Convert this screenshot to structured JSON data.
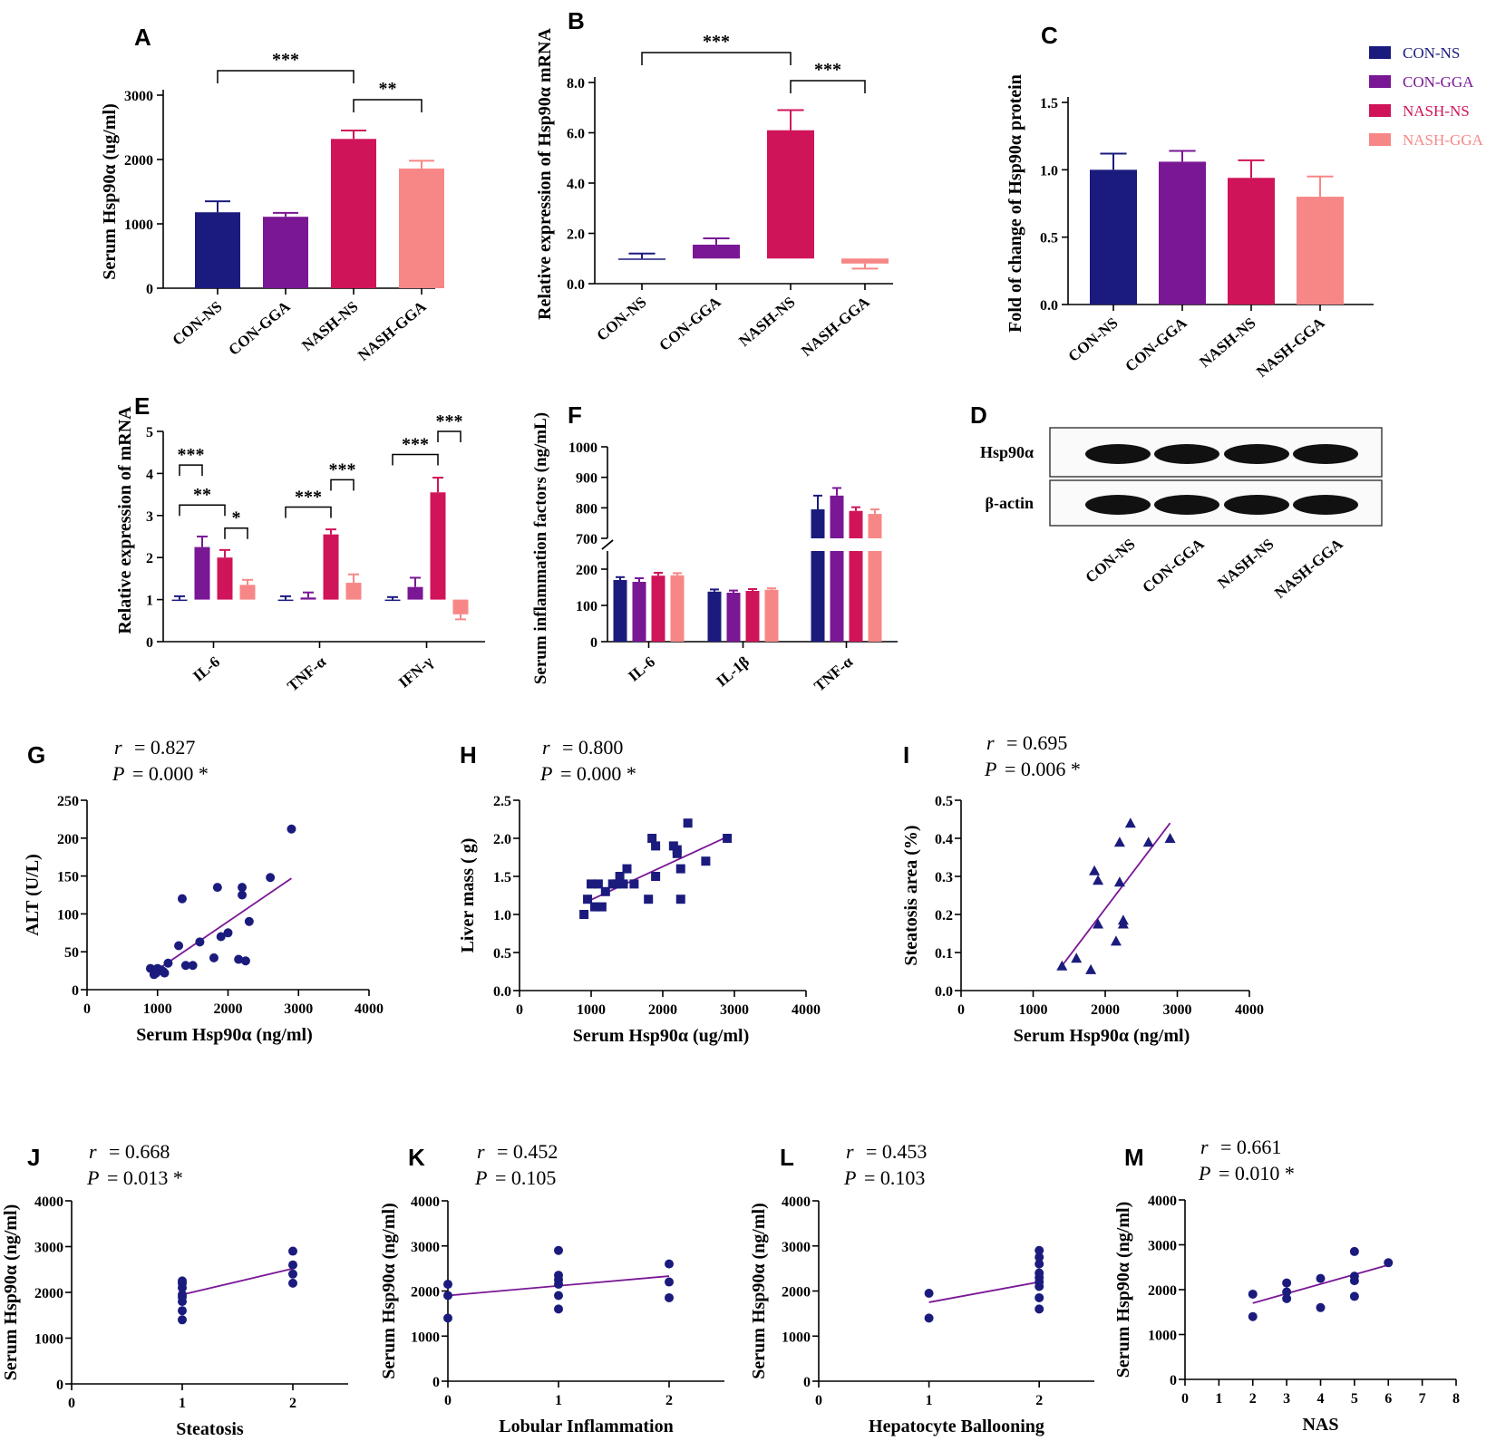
{
  "colors": {
    "CON-NS": "#1b1b7e",
    "CON-GGA": "#7a1795",
    "NASH-NS": "#d0145a",
    "NASH-GGA": "#f78787",
    "line": "#7a1795",
    "point": "#1b1b7e"
  },
  "legend": {
    "items": [
      {
        "label": "CON-NS",
        "color": "#1b1b7e"
      },
      {
        "label": "CON-GGA",
        "color": "#7a1795"
      },
      {
        "label": "NASH-NS",
        "color": "#d0145a"
      },
      {
        "label": "NASH-GGA",
        "color": "#f78787"
      }
    ]
  },
  "blot": {
    "label": "D",
    "rows": [
      "Hsp90α",
      "β-actin"
    ],
    "lanes": [
      "CON-NS",
      "CON-GGA",
      "NASH-NS",
      "NASH-GGA"
    ]
  },
  "chart_data": [
    {
      "id": "A",
      "label": "A",
      "type": "bar",
      "ylabel": "Serum Hsp90α (ug/ml)",
      "ylim": [
        0,
        3000
      ],
      "yticks": [
        "0",
        "1000",
        "2000",
        "3000"
      ],
      "categories": [
        "CON-NS",
        "CON-GGA",
        "NASH-NS",
        "NASH-GGA"
      ],
      "values": [
        1180,
        1110,
        2320,
        1860
      ],
      "errors": [
        170,
        60,
        130,
        120
      ],
      "sig": [
        {
          "text": "***",
          "from": 0,
          "to": 2
        },
        {
          "text": "**",
          "from": 2,
          "to": 3
        }
      ]
    },
    {
      "id": "B",
      "label": "B",
      "type": "bar",
      "ylabel": "Relative expression of Hsp90α mRNA",
      "ylim": [
        0,
        8
      ],
      "yticks": [
        "0.0",
        "2.0",
        "4.0",
        "6.0",
        "8.0"
      ],
      "categories": [
        "CON-NS",
        "CON-GGA",
        "NASH-NS",
        "NASH-GGA"
      ],
      "values": [
        1.0,
        1.55,
        6.1,
        0.8
      ],
      "errors": [
        0.2,
        0.25,
        0.8,
        0.2
      ],
      "baseline": 1.0,
      "sig": [
        {
          "text": "***",
          "from": 0,
          "to": 2
        },
        {
          "text": "***",
          "from": 2,
          "to": 3
        }
      ]
    },
    {
      "id": "C",
      "label": "C",
      "type": "bar",
      "ylabel": "Fold of change of Hsp90α protein",
      "ylim": [
        0,
        1.5
      ],
      "yticks": [
        "0.0",
        "0.5",
        "1.0",
        "1.5"
      ],
      "categories": [
        "CON-NS",
        "CON-GGA",
        "NASH-NS",
        "NASH-GGA"
      ],
      "values": [
        1.0,
        1.06,
        0.94,
        0.8
      ],
      "errors": [
        0.12,
        0.08,
        0.13,
        0.15
      ]
    },
    {
      "id": "E",
      "label": "E",
      "type": "bar",
      "ylabel": "Relative expression of mRNA",
      "ylim": [
        0,
        5
      ],
      "yticks": [
        "0",
        "1",
        "2",
        "3",
        "4",
        "5"
      ],
      "groups": [
        "IL-6",
        "TNF-α",
        "IFN-γ"
      ],
      "baseline": 1.0,
      "series": [
        {
          "name": "CON-NS",
          "values": [
            1.0,
            1.0,
            1.0
          ],
          "errors": [
            0.08,
            0.08,
            0.06
          ]
        },
        {
          "name": "CON-GGA",
          "values": [
            2.25,
            1.05,
            1.3
          ],
          "errors": [
            0.25,
            0.12,
            0.22
          ]
        },
        {
          "name": "NASH-NS",
          "values": [
            2.0,
            2.55,
            3.55
          ],
          "errors": [
            0.18,
            0.12,
            0.35
          ]
        },
        {
          "name": "NASH-GGA",
          "values": [
            1.35,
            1.4,
            0.65
          ],
          "errors": [
            0.12,
            0.2,
            0.12
          ]
        }
      ],
      "sig": [
        {
          "text": "***",
          "group": 0,
          "from": 0,
          "to": 1,
          "level": 4.2
        },
        {
          "text": "**",
          "group": 0,
          "from": 0,
          "to": 2,
          "level": 3.25
        },
        {
          "text": "*",
          "group": 0,
          "from": 2,
          "to": 3,
          "level": 2.7
        },
        {
          "text": "***",
          "group": 1,
          "from": 0,
          "to": 2,
          "level": 3.2
        },
        {
          "text": "***",
          "group": 1,
          "from": 2,
          "to": 3,
          "level": 3.85
        },
        {
          "text": "***",
          "group": 2,
          "from": 0,
          "to": 2,
          "level": 4.45
        },
        {
          "text": "***",
          "group": 2,
          "from": 2,
          "to": 3,
          "level": 5.0
        }
      ]
    },
    {
      "id": "F",
      "label": "F",
      "type": "bar",
      "ylabel": "Serum inflammation factors (ng/mL)",
      "yticks_lower": [
        "0",
        "100",
        "200"
      ],
      "yticks_upper": [
        "700",
        "800",
        "900",
        "1000"
      ],
      "ylim_lower": [
        0,
        250
      ],
      "ylim_upper": [
        700,
        1000
      ],
      "groups": [
        "IL-6",
        "IL-1β",
        "TNF-α"
      ],
      "series": [
        {
          "name": "CON-NS",
          "values": [
            170,
            138,
            795
          ],
          "errors": [
            8,
            6,
            45
          ]
        },
        {
          "name": "CON-GGA",
          "values": [
            165,
            135,
            840
          ],
          "errors": [
            10,
            6,
            25
          ]
        },
        {
          "name": "NASH-NS",
          "values": [
            182,
            140,
            790
          ],
          "errors": [
            8,
            5,
            12
          ]
        },
        {
          "name": "NASH-GGA",
          "values": [
            183,
            143,
            780
          ],
          "errors": [
            6,
            4,
            15
          ]
        }
      ]
    },
    {
      "id": "G",
      "label": "G",
      "type": "scatter",
      "marker": "circle",
      "r_label": "r",
      "r_value": "= 0.827",
      "p_label": "P",
      "p_value": "= 0.000 *",
      "xlabel": "Serum Hsp90α (ng/ml)",
      "ylabel": "ALT (U/L)",
      "xlim": [
        0,
        4000
      ],
      "ylim": [
        0,
        250
      ],
      "xticks": [
        "0",
        "1000",
        "2000",
        "3000",
        "4000"
      ],
      "yticks": [
        "0",
        "50",
        "100",
        "150",
        "200",
        "250"
      ],
      "x": [
        900,
        950,
        980,
        1000,
        1050,
        1080,
        1100,
        1150,
        1300,
        1350,
        1400,
        1500,
        1600,
        1800,
        1850,
        1900,
        2000,
        2150,
        2200,
        2200,
        2250,
        2300,
        2600,
        2900
      ],
      "y": [
        28,
        20,
        22,
        28,
        26,
        24,
        22,
        35,
        58,
        120,
        32,
        32,
        63,
        42,
        135,
        70,
        75,
        40,
        135,
        125,
        38,
        90,
        148,
        212
      ],
      "fit": {
        "x": [
          900,
          2900
        ],
        "y": [
          20,
          147
        ]
      }
    },
    {
      "id": "H",
      "label": "H",
      "type": "scatter",
      "marker": "square",
      "r_label": "r",
      "r_value": "= 0.800",
      "p_label": "P",
      "p_value": "= 0.000 *",
      "xlabel": "Serum Hsp90α (ug/ml)",
      "ylabel": "Liver mass ( g)",
      "xlim": [
        0,
        4000
      ],
      "ylim": [
        0,
        2.5
      ],
      "xticks": [
        "0",
        "1000",
        "2000",
        "3000",
        "4000"
      ],
      "yticks": [
        "0.0",
        "0.5",
        "1.0",
        "1.5",
        "2.0",
        "2.5"
      ],
      "x": [
        900,
        950,
        1000,
        1050,
        1100,
        1150,
        1200,
        1300,
        1350,
        1400,
        1450,
        1500,
        1600,
        1800,
        1850,
        1900,
        1900,
        2150,
        2200,
        2200,
        2250,
        2250,
        2350,
        2600,
        2900
      ],
      "y": [
        1.0,
        1.2,
        1.4,
        1.1,
        1.4,
        1.1,
        1.3,
        1.4,
        1.4,
        1.5,
        1.4,
        1.6,
        1.4,
        1.2,
        2.0,
        1.5,
        1.9,
        1.9,
        1.85,
        1.8,
        1.6,
        1.2,
        2.2,
        1.7,
        2.0
      ],
      "fit": {
        "x": [
          900,
          2900
        ],
        "y": [
          1.15,
          2.02
        ]
      }
    },
    {
      "id": "I",
      "label": "I",
      "type": "scatter",
      "marker": "triangle",
      "r_label": "r",
      "r_value": "= 0.695",
      "p_label": "P",
      "p_value": "= 0.006 *",
      "xlabel": "Serum Hsp90α (ng/ml)",
      "ylabel": "Steatosis area (%)",
      "xlim": [
        0,
        4000
      ],
      "ylim": [
        0,
        0.5
      ],
      "xticks": [
        "0",
        "1000",
        "2000",
        "3000",
        "4000"
      ],
      "yticks": [
        "0.0",
        "0.1",
        "0.2",
        "0.3",
        "0.4",
        "0.5"
      ],
      "x": [
        1400,
        1600,
        1800,
        1850,
        1900,
        1900,
        2150,
        2200,
        2200,
        2250,
        2250,
        2350,
        2600,
        2900
      ],
      "y": [
        0.065,
        0.085,
        0.055,
        0.315,
        0.29,
        0.175,
        0.13,
        0.39,
        0.285,
        0.185,
        0.175,
        0.44,
        0.39,
        0.4
      ],
      "fit": {
        "x": [
          1400,
          2900
        ],
        "y": [
          0.065,
          0.44
        ]
      }
    },
    {
      "id": "J",
      "label": "J",
      "type": "scatter",
      "marker": "circle",
      "r_label": "r",
      "r_value": "= 0.668",
      "p_label": "P",
      "p_value": "= 0.013 *",
      "xlabel": "Steatosis",
      "ylabel": "Serum Hsp90α (ng/ml)",
      "xlim": [
        0,
        2.5
      ],
      "ylim": [
        0,
        4000
      ],
      "xticks": [
        "0",
        "1",
        "2"
      ],
      "xtick_values": [
        0,
        1,
        2
      ],
      "yticks": [
        "0",
        "1000",
        "2000",
        "3000",
        "4000"
      ],
      "x": [
        1,
        1,
        1,
        1,
        1,
        1,
        1,
        1,
        2,
        2,
        2,
        2
      ],
      "y": [
        1400,
        1600,
        1800,
        1900,
        1950,
        2100,
        2200,
        2250,
        2200,
        2400,
        2600,
        2900
      ],
      "fit": {
        "x": [
          1,
          2
        ],
        "y": [
          1950,
          2520
        ]
      }
    },
    {
      "id": "K",
      "label": "K",
      "type": "scatter",
      "marker": "circle",
      "r_label": "r",
      "r_value": "= 0.452",
      "p_label": "P",
      "p_value": "= 0.105",
      "xlabel": "Lobular Inflammation",
      "ylabel": "Serum Hsp90α (ng/ml)",
      "xlim": [
        0,
        2.5
      ],
      "ylim": [
        0,
        4000
      ],
      "xticks": [
        "0",
        "1",
        "2"
      ],
      "xtick_values": [
        0,
        1,
        2
      ],
      "yticks": [
        "0",
        "1000",
        "2000",
        "3000",
        "4000"
      ],
      "x": [
        0,
        0,
        0,
        1,
        1,
        1,
        1,
        1,
        1,
        2,
        2,
        2
      ],
      "y": [
        1400,
        1900,
        2150,
        1600,
        1900,
        2150,
        2250,
        2350,
        2900,
        1850,
        2200,
        2600
      ],
      "fit": {
        "x": [
          0,
          2
        ],
        "y": [
          1900,
          2330
        ]
      }
    },
    {
      "id": "L",
      "label": "L",
      "type": "scatter",
      "marker": "circle",
      "r_label": "r",
      "r_value": "= 0.453",
      "p_label": "P",
      "p_value": "= 0.103",
      "xlabel": "Hepatocyte Ballooning",
      "ylabel": "Serum Hsp90α (ng/ml)",
      "xlim": [
        0,
        2.5
      ],
      "ylim": [
        0,
        4000
      ],
      "xticks": [
        "0",
        "1",
        "2"
      ],
      "xtick_values": [
        0,
        1,
        2
      ],
      "yticks": [
        "0",
        "1000",
        "2000",
        "3000",
        "4000"
      ],
      "x": [
        1,
        1,
        2,
        2,
        2,
        2,
        2,
        2,
        2,
        2,
        2
      ],
      "y": [
        1400,
        1950,
        1600,
        1850,
        2100,
        2200,
        2300,
        2400,
        2600,
        2750,
        2900
      ],
      "fit": {
        "x": [
          1,
          2
        ],
        "y": [
          1750,
          2200
        ]
      }
    },
    {
      "id": "M",
      "label": "M",
      "type": "scatter",
      "marker": "circle",
      "r_label": "r",
      "r_value": "= 0.661",
      "p_label": "P",
      "p_value": "= 0.010 *",
      "xlabel": "NAS",
      "ylabel": "Serum Hsp90α (ng/ml)",
      "xlim": [
        0,
        8
      ],
      "ylim": [
        0,
        4000
      ],
      "xticks": [
        "0",
        "1",
        "2",
        "3",
        "4",
        "5",
        "6",
        "7",
        "8"
      ],
      "xtick_values": [
        0,
        1,
        2,
        3,
        4,
        5,
        6,
        7,
        8
      ],
      "yticks": [
        "0",
        "1000",
        "2000",
        "3000",
        "4000"
      ],
      "x": [
        2,
        2,
        3,
        3,
        3,
        4,
        4,
        5,
        5,
        5,
        5,
        6
      ],
      "y": [
        1400,
        1900,
        1800,
        1950,
        2150,
        1600,
        2250,
        1850,
        2200,
        2300,
        2850,
        2600
      ],
      "fit": {
        "x": [
          2,
          6
        ],
        "y": [
          1700,
          2550
        ]
      }
    }
  ]
}
